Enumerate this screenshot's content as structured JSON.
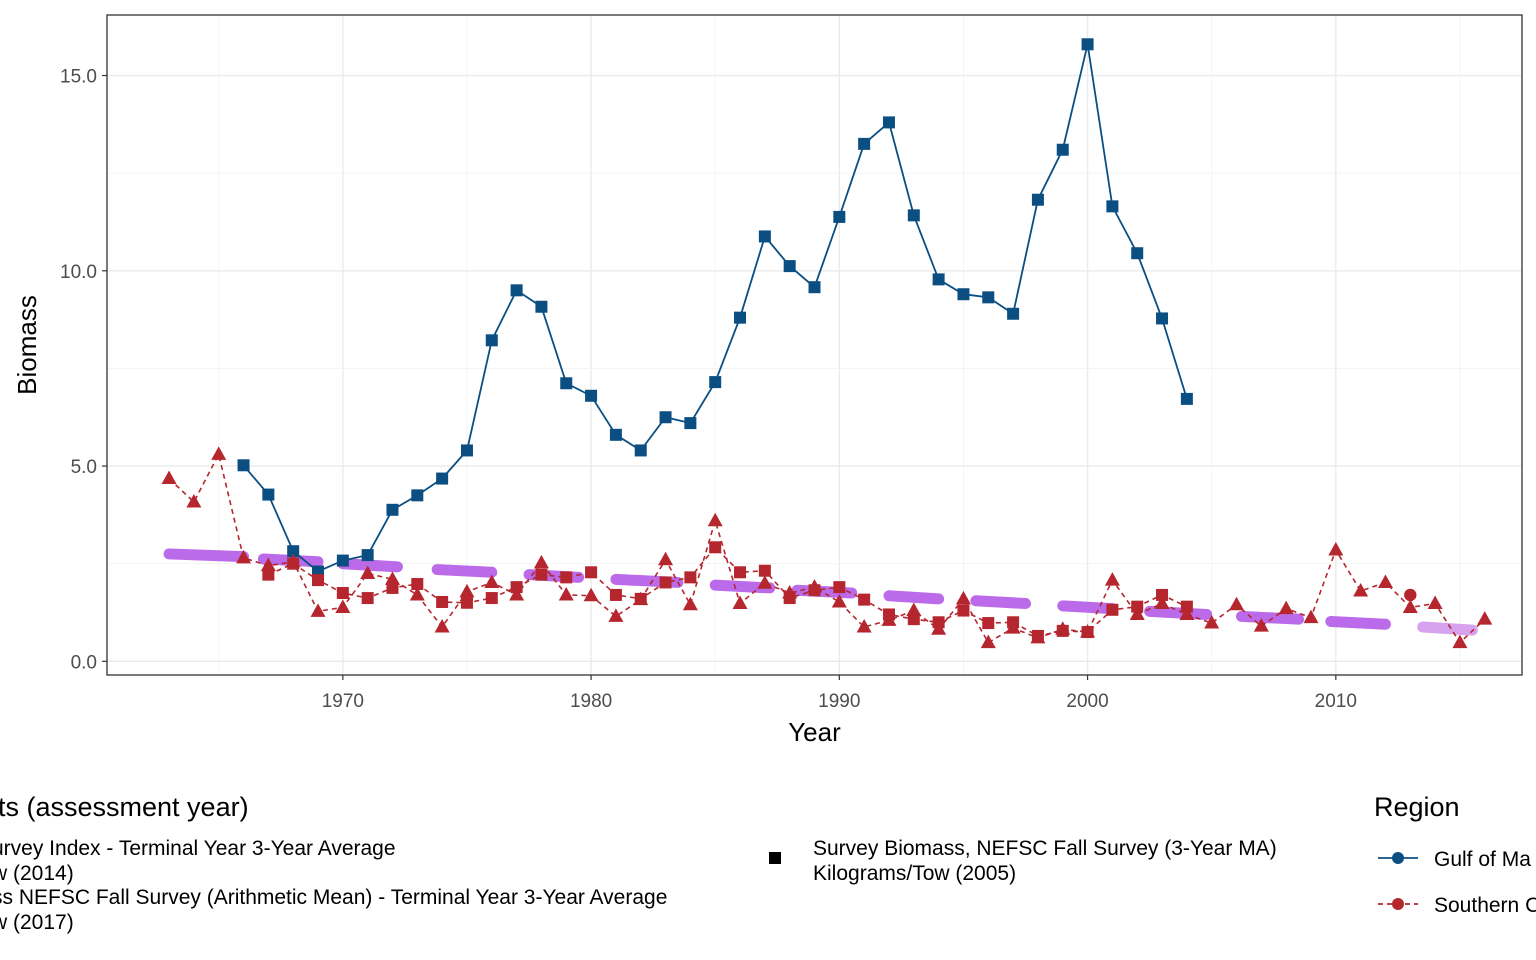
{
  "chart_data": {
    "type": "line",
    "xlabel": "Year",
    "ylabel": "Biomass",
    "xlim": [
      1960.5,
      2017.5
    ],
    "ylim": [
      -0.35,
      16.55
    ],
    "x_ticks": [
      1970,
      1980,
      1990,
      2000,
      2010
    ],
    "x_tick_labels": [
      "1970",
      "1980",
      "1990",
      "2000",
      "2010"
    ],
    "y_ticks": [
      0,
      5,
      10,
      15
    ],
    "y_tick_labels": [
      "0.0",
      "5.0",
      "10.0",
      "15.0"
    ],
    "grid": true,
    "colors": {
      "gulf": "#0b4f82",
      "southern": "#b5262f",
      "ref_bright": "#b65fe8",
      "ref_light": "#d49bec"
    },
    "series": [
      {
        "region": "gulf",
        "line": "solid",
        "points": [
          [
            1966,
            5.02,
            "square"
          ],
          [
            1967,
            4.27,
            "square"
          ],
          [
            1968,
            2.82,
            "square"
          ],
          [
            1969,
            2.3,
            "square"
          ],
          [
            1970,
            2.58,
            "square"
          ],
          [
            1971,
            2.72,
            "square"
          ],
          [
            1972,
            3.88,
            "square"
          ],
          [
            1973,
            4.25,
            "square"
          ],
          [
            1974,
            4.68,
            "square"
          ],
          [
            1975,
            5.4,
            "square"
          ],
          [
            1976,
            8.22,
            "square"
          ],
          [
            1977,
            9.5,
            "square"
          ],
          [
            1978,
            9.08,
            "square"
          ],
          [
            1979,
            7.12,
            "square"
          ],
          [
            1980,
            6.8,
            "square"
          ],
          [
            1981,
            5.8,
            "square"
          ],
          [
            1982,
            5.4,
            "square"
          ],
          [
            1983,
            6.25,
            "square"
          ],
          [
            1984,
            6.1,
            "square"
          ],
          [
            1985,
            7.15,
            "square"
          ],
          [
            1986,
            8.8,
            "square"
          ],
          [
            1987,
            10.88,
            "square"
          ],
          [
            1988,
            10.12,
            "square"
          ],
          [
            1989,
            9.58,
            "square"
          ],
          [
            1990,
            11.38,
            "square"
          ],
          [
            1991,
            13.25,
            "square"
          ],
          [
            1992,
            13.8,
            "square"
          ],
          [
            1993,
            11.42,
            "square"
          ],
          [
            1994,
            9.78,
            "square"
          ],
          [
            1995,
            9.4,
            "square"
          ],
          [
            1996,
            9.32,
            "square"
          ],
          [
            1997,
            8.9,
            "square"
          ],
          [
            1998,
            11.82,
            "square"
          ],
          [
            1999,
            13.1,
            "square"
          ],
          [
            2000,
            15.8,
            "square"
          ],
          [
            2001,
            11.65,
            "square"
          ],
          [
            2002,
            10.45,
            "square"
          ],
          [
            2003,
            8.78,
            "square"
          ],
          [
            2004,
            6.72,
            "square"
          ]
        ]
      },
      {
        "region": "southern",
        "line": "dashed",
        "points": [
          [
            1963,
            4.68,
            "triangle"
          ],
          [
            1964,
            4.08,
            "triangle"
          ],
          [
            1965,
            5.3,
            "triangle"
          ],
          [
            1966,
            2.65,
            "triangle"
          ],
          [
            1967,
            2.45,
            "triangle"
          ],
          [
            1968,
            2.55,
            "triangle"
          ],
          [
            1969,
            1.28,
            "triangle"
          ],
          [
            1970,
            1.38,
            "triangle"
          ],
          [
            1971,
            2.25,
            "triangle"
          ],
          [
            1972,
            2.1,
            "triangle"
          ],
          [
            1973,
            1.7,
            "triangle"
          ],
          [
            1974,
            0.88,
            "triangle"
          ],
          [
            1975,
            1.78,
            "triangle"
          ],
          [
            1976,
            2.02,
            "triangle"
          ],
          [
            1977,
            1.7,
            "triangle"
          ],
          [
            1978,
            2.52,
            "triangle"
          ],
          [
            1979,
            1.7,
            "triangle"
          ],
          [
            1980,
            1.68,
            "triangle"
          ],
          [
            1981,
            1.15,
            "triangle"
          ],
          [
            1982,
            1.58,
            "triangle"
          ],
          [
            1983,
            2.6,
            "triangle"
          ],
          [
            1984,
            1.45,
            "triangle"
          ],
          [
            1985,
            3.6,
            "triangle"
          ],
          [
            1986,
            1.48,
            "triangle"
          ],
          [
            1987,
            2.0,
            "triangle"
          ],
          [
            1988,
            1.75,
            "triangle"
          ],
          [
            1989,
            1.9,
            "triangle"
          ],
          [
            1990,
            1.52,
            "triangle"
          ],
          [
            1991,
            0.88,
            "triangle"
          ],
          [
            1992,
            1.05,
            "triangle"
          ],
          [
            1993,
            1.3,
            "triangle"
          ],
          [
            1994,
            0.82,
            "triangle"
          ],
          [
            1995,
            1.6,
            "triangle"
          ],
          [
            1996,
            0.48,
            "triangle"
          ],
          [
            1997,
            0.85,
            "triangle"
          ],
          [
            1998,
            0.6,
            "triangle"
          ],
          [
            1999,
            0.82,
            "triangle"
          ],
          [
            2000,
            0.75,
            "triangle"
          ],
          [
            2001,
            2.08,
            "triangle"
          ],
          [
            2002,
            1.2,
            "triangle"
          ],
          [
            2003,
            1.48,
            "triangle"
          ],
          [
            2004,
            1.2,
            "triangle"
          ],
          [
            2005,
            0.98,
            "triangle"
          ],
          [
            2006,
            1.45,
            "triangle"
          ],
          [
            2007,
            0.9,
            "triangle"
          ],
          [
            2008,
            1.35,
            "triangle"
          ],
          [
            2009,
            1.12,
            "triangle"
          ],
          [
            2010,
            2.85,
            "triangle"
          ],
          [
            2011,
            1.8,
            "triangle"
          ],
          [
            2012,
            2.02,
            "triangle"
          ],
          [
            2013,
            1.38,
            "triangle"
          ],
          [
            2014,
            1.48,
            "triangle"
          ],
          [
            2015,
            0.48,
            "triangle"
          ],
          [
            2016,
            1.08,
            "triangle"
          ]
        ]
      },
      {
        "region": "southern",
        "line": "dashed",
        "points": [
          [
            1967,
            2.22,
            "square"
          ],
          [
            1968,
            2.5,
            "square"
          ],
          [
            1969,
            2.08,
            "square"
          ],
          [
            1970,
            1.75,
            "square"
          ],
          [
            1971,
            1.62,
            "square"
          ],
          [
            1972,
            1.88,
            "square"
          ],
          [
            1973,
            1.98,
            "square"
          ],
          [
            1974,
            1.52,
            "square"
          ],
          [
            1975,
            1.5,
            "square"
          ],
          [
            1976,
            1.62,
            "square"
          ],
          [
            1977,
            1.9,
            "square"
          ],
          [
            1978,
            2.22,
            "square"
          ],
          [
            1979,
            2.15,
            "square"
          ],
          [
            1980,
            2.28,
            "square"
          ],
          [
            1981,
            1.7,
            "square"
          ],
          [
            1982,
            1.6,
            "square"
          ],
          [
            1983,
            2.02,
            "square"
          ],
          [
            1984,
            2.15,
            "square"
          ],
          [
            1985,
            2.92,
            "square"
          ],
          [
            1986,
            2.28,
            "square"
          ],
          [
            1987,
            2.32,
            "square"
          ],
          [
            1988,
            1.62,
            "square"
          ],
          [
            1989,
            1.82,
            "square"
          ],
          [
            1990,
            1.9,
            "square"
          ],
          [
            1991,
            1.58,
            "square"
          ],
          [
            1992,
            1.2,
            "square"
          ],
          [
            1993,
            1.08,
            "square"
          ],
          [
            1994,
            1.0,
            "square"
          ],
          [
            1995,
            1.3,
            "square"
          ],
          [
            1996,
            0.98,
            "square"
          ],
          [
            1997,
            1.0,
            "square"
          ],
          [
            1998,
            0.65,
            "square"
          ],
          [
            1999,
            0.78,
            "square"
          ],
          [
            2000,
            0.75,
            "square"
          ],
          [
            2001,
            1.32,
            "square"
          ],
          [
            2002,
            1.4,
            "square"
          ],
          [
            2003,
            1.7,
            "square"
          ],
          [
            2004,
            1.4,
            "square"
          ]
        ]
      },
      {
        "region": "southern",
        "line": "none",
        "points": [
          [
            2013,
            1.7,
            "circle"
          ]
        ]
      }
    ],
    "reference_segments": [
      {
        "x": [
          1963,
          1966
        ],
        "y": [
          2.75,
          2.68
        ],
        "tone": "bright"
      },
      {
        "x": [
          1966.8,
          1969
        ],
        "y": [
          2.62,
          2.55
        ],
        "tone": "bright"
      },
      {
        "x": [
          1970,
          1972.2
        ],
        "y": [
          2.5,
          2.42
        ],
        "tone": "bright"
      },
      {
        "x": [
          1973.8,
          1976
        ],
        "y": [
          2.35,
          2.28
        ],
        "tone": "bright"
      },
      {
        "x": [
          1977.5,
          1979.5
        ],
        "y": [
          2.22,
          2.15
        ],
        "tone": "bright"
      },
      {
        "x": [
          1981,
          1983.5
        ],
        "y": [
          2.1,
          2.02
        ],
        "tone": "bright"
      },
      {
        "x": [
          1985,
          1987.2
        ],
        "y": [
          1.95,
          1.88
        ],
        "tone": "bright"
      },
      {
        "x": [
          1988.3,
          1990.5
        ],
        "y": [
          1.82,
          1.75
        ],
        "tone": "bright"
      },
      {
        "x": [
          1992,
          1994
        ],
        "y": [
          1.68,
          1.6
        ],
        "tone": "bright"
      },
      {
        "x": [
          1995.5,
          1997.5
        ],
        "y": [
          1.55,
          1.48
        ],
        "tone": "bright"
      },
      {
        "x": [
          1999,
          2001
        ],
        "y": [
          1.42,
          1.35
        ],
        "tone": "bright"
      },
      {
        "x": [
          2002.5,
          2004.8
        ],
        "y": [
          1.28,
          1.2
        ],
        "tone": "bright"
      },
      {
        "x": [
          2006.2,
          2008.5
        ],
        "y": [
          1.15,
          1.08
        ],
        "tone": "bright"
      },
      {
        "x": [
          2009.8,
          2012
        ],
        "y": [
          1.02,
          0.95
        ],
        "tone": "bright"
      },
      {
        "x": [
          2013.5,
          2015.5
        ],
        "y": [
          0.88,
          0.8
        ],
        "tone": "light"
      }
    ],
    "legend": {
      "units_title": "its (assessment year)",
      "units_items": [
        {
          "lines": [
            "urvey Index - Terminal Year 3-Year Average",
            "w (2014)"
          ]
        },
        {
          "lines": [
            "ss NEFSC Fall Survey (Arithmetic Mean) - Terminal Year 3-Year Average",
            "w (2017)"
          ]
        },
        {
          "marker": "square",
          "lines": [
            "Survey Biomass, NEFSC Fall Survey (3-Year MA)",
            "Kilograms/Tow (2005)"
          ]
        }
      ],
      "region_title": "Region",
      "region_items": [
        {
          "label": "Gulf of Ma",
          "color_key": "gulf",
          "line": "solid"
        },
        {
          "label": "Southern C",
          "color_key": "southern",
          "line": "dashed"
        }
      ]
    }
  }
}
